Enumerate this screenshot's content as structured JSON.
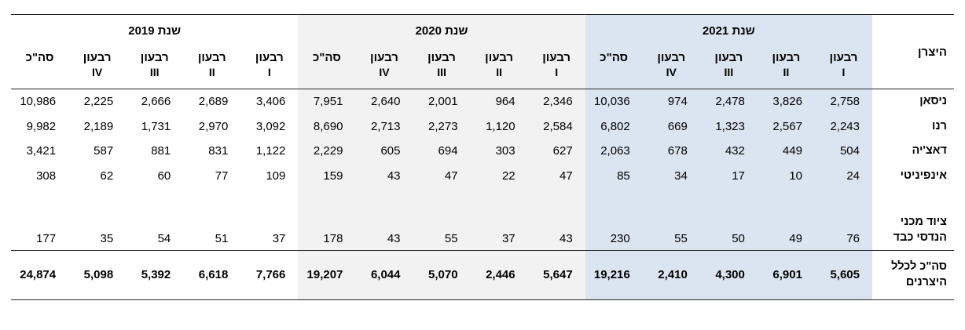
{
  "table": {
    "producer_header": "היצרן",
    "quarter_label": "רבעון",
    "total_col_label": "סה\"כ",
    "quarter_numerals": [
      "I",
      "II",
      "III",
      "IV"
    ],
    "year_groups": [
      {
        "label": "שנת 2021",
        "bg": "#dbe5f1"
      },
      {
        "label": "שנת 2020",
        "bg": "#f2f2f2"
      },
      {
        "label": "שנת 2019",
        "bg": "#ffffff"
      }
    ],
    "group_column_order": [
      "רבעון I",
      "רבעון II",
      "רבעון III",
      "רבעון IV",
      "סה\"כ"
    ],
    "rows": [
      {
        "producer": "ניסאן",
        "groups": [
          [
            "2,758",
            "3,826",
            "2,478",
            "974",
            "10,036"
          ],
          [
            "2,346",
            "964",
            "2,001",
            "2,640",
            "7,951"
          ],
          [
            "3,406",
            "2,689",
            "2,666",
            "2,225",
            "10,986"
          ]
        ]
      },
      {
        "producer": "רנו",
        "groups": [
          [
            "2,243",
            "2,567",
            "1,323",
            "669",
            "6,802"
          ],
          [
            "2,584",
            "1,120",
            "2,273",
            "2,713",
            "8,690"
          ],
          [
            "3,092",
            "2,970",
            "1,731",
            "2,189",
            "9,982"
          ]
        ]
      },
      {
        "producer": "דאצ'יה",
        "groups": [
          [
            "504",
            "449",
            "432",
            "678",
            "2,063"
          ],
          [
            "627",
            "303",
            "694",
            "605",
            "2,229"
          ],
          [
            "1,122",
            "831",
            "881",
            "587",
            "3,421"
          ]
        ]
      },
      {
        "producer": "אינפיניטי",
        "groups": [
          [
            "24",
            "10",
            "17",
            "34",
            "85"
          ],
          [
            "47",
            "22",
            "47",
            "43",
            "159"
          ],
          [
            "109",
            "77",
            "60",
            "62",
            "308"
          ]
        ]
      },
      {
        "producer": "ציוד מכני\nהנדסי כבד",
        "tall": true,
        "groups": [
          [
            "76",
            "49",
            "50",
            "55",
            "230"
          ],
          [
            "43",
            "37",
            "55",
            "43",
            "178"
          ],
          [
            "37",
            "51",
            "54",
            "35",
            "177"
          ]
        ]
      }
    ],
    "total_row": {
      "producer": "סה\"כ לכלל\nהיצרנים",
      "groups": [
        [
          "5,605",
          "6,901",
          "4,300",
          "2,410",
          "19,216"
        ],
        [
          "5,647",
          "2,446",
          "5,070",
          "6,044",
          "19,207"
        ],
        [
          "7,766",
          "6,618",
          "5,392",
          "5,098",
          "24,874"
        ]
      ]
    }
  },
  "colors": {
    "year_2021_bg": "#dbe5f1",
    "year_2020_bg": "#f2f2f2",
    "year_2019_bg": "#ffffff",
    "rule": "#262626",
    "text": "#000000"
  }
}
